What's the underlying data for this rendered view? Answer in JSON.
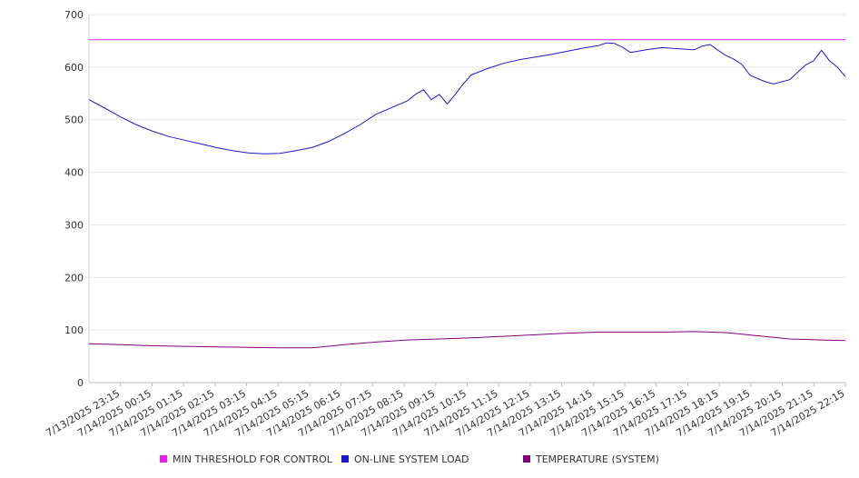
{
  "chart_data": {
    "type": "line",
    "grid": true,
    "legend_position": "bottom",
    "ylim": [
      0,
      700
    ],
    "y_ticks": [
      0,
      100,
      200,
      300,
      400,
      500,
      600,
      700
    ],
    "x_start": "2025-07-13T23:00",
    "x_end": "2025-07-14T22:45",
    "x_step_minutes": 5,
    "x_tick_labels": [
      "7/13/2025 23:15",
      "7/14/2025 00:15",
      "7/14/2025 01:15",
      "7/14/2025 02:15",
      "7/14/2025 03:15",
      "7/14/2025 04:15",
      "7/14/2025 05:15",
      "7/14/2025 06:15",
      "7/14/2025 07:15",
      "7/14/2025 08:15",
      "7/14/2025 09:15",
      "7/14/2025 10:15",
      "7/14/2025 11:15",
      "7/14/2025 12:15",
      "7/14/2025 13:15",
      "7/14/2025 14:15",
      "7/14/2025 15:15",
      "7/14/2025 16:15",
      "7/14/2025 17:15",
      "7/14/2025 18:15",
      "7/14/2025 19:15",
      "7/14/2025 20:15",
      "7/14/2025 21:15",
      "7/14/2025 22:15"
    ],
    "series": [
      {
        "name": "MIN THRESHOLD FOR CONTROL",
        "color": "#e81ee8",
        "x": [
          "2025-07-13T23:00",
          "2025-07-14T22:45"
        ],
        "values": [
          652,
          652
        ]
      },
      {
        "name": "ON-LINE SYSTEM LOAD",
        "color": "#1a1acc",
        "x": [
          "2025-07-13T23:00",
          "2025-07-13T23:30",
          "2025-07-14T00:00",
          "2025-07-14T00:30",
          "2025-07-14T01:00",
          "2025-07-14T01:30",
          "2025-07-14T02:00",
          "2025-07-14T02:30",
          "2025-07-14T03:00",
          "2025-07-14T03:30",
          "2025-07-14T04:00",
          "2025-07-14T04:30",
          "2025-07-14T05:00",
          "2025-07-14T05:30",
          "2025-07-14T06:00",
          "2025-07-14T06:30",
          "2025-07-14T07:00",
          "2025-07-14T07:30",
          "2025-07-14T08:00",
          "2025-07-14T08:30",
          "2025-07-14T09:00",
          "2025-07-14T09:15",
          "2025-07-14T09:30",
          "2025-07-14T09:45",
          "2025-07-14T10:00",
          "2025-07-14T10:15",
          "2025-07-14T10:30",
          "2025-07-14T10:45",
          "2025-07-14T11:00",
          "2025-07-14T11:30",
          "2025-07-14T12:00",
          "2025-07-14T12:30",
          "2025-07-14T13:00",
          "2025-07-14T13:30",
          "2025-07-14T14:00",
          "2025-07-14T14:30",
          "2025-07-14T15:00",
          "2025-07-14T15:15",
          "2025-07-14T15:30",
          "2025-07-14T15:45",
          "2025-07-14T16:00",
          "2025-07-14T16:30",
          "2025-07-14T17:00",
          "2025-07-14T17:30",
          "2025-07-14T18:00",
          "2025-07-14T18:15",
          "2025-07-14T18:30",
          "2025-07-14T18:45",
          "2025-07-14T19:00",
          "2025-07-14T19:15",
          "2025-07-14T19:30",
          "2025-07-14T19:45",
          "2025-07-14T20:00",
          "2025-07-14T20:15",
          "2025-07-14T20:30",
          "2025-07-14T21:00",
          "2025-07-14T21:15",
          "2025-07-14T21:30",
          "2025-07-14T21:45",
          "2025-07-14T22:00",
          "2025-07-14T22:15",
          "2025-07-14T22:30",
          "2025-07-14T22:45"
        ],
        "values": [
          538,
          522,
          505,
          490,
          478,
          468,
          461,
          454,
          447,
          441,
          437,
          435,
          436,
          441,
          447,
          458,
          473,
          490,
          510,
          523,
          536,
          548,
          557,
          538,
          548,
          530,
          548,
          568,
          585,
          597,
          607,
          614,
          619,
          624,
          630,
          636,
          641,
          646,
          645,
          638,
          628,
          633,
          637,
          635,
          633,
          640,
          643,
          632,
          622,
          615,
          605,
          585,
          578,
          572,
          568,
          576,
          590,
          604,
          612,
          632,
          612,
          600,
          582
        ]
      },
      {
        "name": "TEMPERATURE (SYSTEM)",
        "color": "#800080",
        "x": [
          "2025-07-13T23:00",
          "2025-07-14T00:00",
          "2025-07-14T01:00",
          "2025-07-14T02:00",
          "2025-07-14T03:00",
          "2025-07-14T04:00",
          "2025-07-14T05:00",
          "2025-07-14T06:00",
          "2025-07-14T06:30",
          "2025-07-14T07:00",
          "2025-07-14T08:00",
          "2025-07-14T09:00",
          "2025-07-14T10:00",
          "2025-07-14T11:00",
          "2025-07-14T12:00",
          "2025-07-14T13:00",
          "2025-07-14T14:00",
          "2025-07-14T15:00",
          "2025-07-14T16:00",
          "2025-07-14T17:00",
          "2025-07-14T18:00",
          "2025-07-14T19:00",
          "2025-07-14T20:00",
          "2025-07-14T21:00",
          "2025-07-14T22:00",
          "2025-07-14T22:45"
        ],
        "values": [
          74,
          72,
          70,
          69,
          68,
          67,
          66,
          66,
          69,
          72,
          77,
          81,
          83,
          85,
          88,
          91,
          94,
          96,
          96,
          96,
          97,
          95,
          89,
          83,
          81,
          80
        ]
      }
    ]
  }
}
